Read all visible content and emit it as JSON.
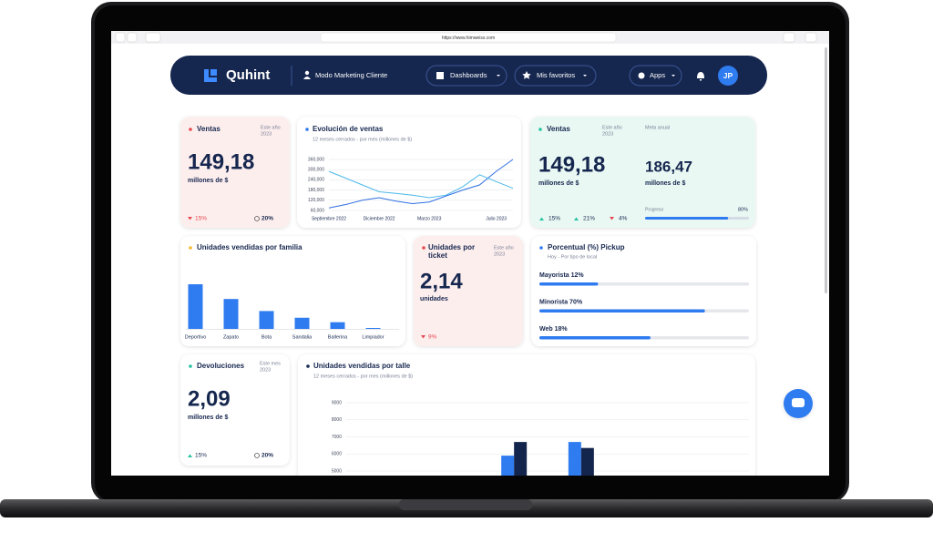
{
  "browser": {
    "url": "https://www.himweiss.com"
  },
  "nav": {
    "brand": "Quhint",
    "profile": "Modo Marketing Cliente",
    "menus": [
      "Dashboards",
      "Mis favoritos",
      "Apps"
    ],
    "avatar": "JP"
  },
  "ventas": {
    "title": "Ventas",
    "period": "Este año",
    "year": "2023",
    "value": "149,18",
    "unit": "millones de $",
    "change": "15%",
    "share": "20%"
  },
  "evolucion": {
    "type": "line",
    "title": "Evolución de ventas",
    "subtitle": "12 meses cerrados - por mes (millones de $)",
    "categories": [
      "Septiembre 2022",
      null,
      null,
      "Diciembre 2022",
      null,
      null,
      "Marzo 2023",
      null,
      null,
      null,
      "Julio 2023",
      null
    ],
    "series": [
      {
        "color": "#2f6fe0",
        "values": [
          75000,
          95000,
          120000,
          135000,
          115000,
          100000,
          110000,
          145000,
          180000,
          210000,
          290000,
          360000
        ]
      },
      {
        "color": "#4cb8e8",
        "values": [
          290000,
          250000,
          210000,
          170000,
          160000,
          150000,
          135000,
          150000,
          200000,
          270000,
          230000,
          190000
        ]
      }
    ],
    "ylim": [
      60000,
      360000
    ],
    "yticks": [
      {
        "value": 60000,
        "label": "60,000"
      },
      {
        "value": 120000,
        "label": "120,000"
      },
      {
        "value": 180000,
        "label": "180,000"
      },
      {
        "value": 240000,
        "label": "240,000"
      },
      {
        "value": 300000,
        "label": "300,000"
      },
      {
        "value": 360000,
        "label": "360,000"
      }
    ],
    "grid": true
  },
  "ventas_anual": {
    "title": "Ventas",
    "period": "Este año",
    "year": "2023",
    "value": "149,18",
    "unit": "millones de $",
    "goal_title": "Meta anual",
    "goal_value": "186,47",
    "goal_unit": "millones de $",
    "progress_title": "Progreso",
    "progress": {
      "value": 80,
      "label": "80%"
    },
    "stats": [
      "15%",
      "21%",
      "4%"
    ]
  },
  "familia": {
    "type": "bar",
    "title": "Unidades vendidas por familia",
    "categories": [
      "Deportivo",
      "Zapato",
      "Bota",
      "Sandalia",
      "Ballerina",
      "Limpiador"
    ],
    "values": [
      100,
      67,
      40,
      25,
      15,
      2
    ],
    "color": "#2f7bf0"
  },
  "ticket": {
    "title": "Unidades por ticket",
    "period": "Este año",
    "year": "2023",
    "value": "2,14",
    "unit": "unidades",
    "change": "9%"
  },
  "pickup": {
    "title": "Porcentual (%) Pickup",
    "subtitle": "Hoy - Por tipo de local",
    "color": "#2f7bf0",
    "items": [
      {
        "label": "Mayorista 12%",
        "bar": 28
      },
      {
        "label": "Minorista 70%",
        "bar": 79
      },
      {
        "label": "Web 18%",
        "bar": 53
      }
    ]
  },
  "devoluciones": {
    "title": "Devoluciones",
    "period": "Este mes",
    "year": "2023",
    "value": "2,09",
    "unit": "millones de $",
    "change": "15%",
    "share": "20%"
  },
  "talle": {
    "type": "bar",
    "title": "Unidades vendidas por talle",
    "subtitle": "12 meses cerrados - por mes (millones de $)",
    "categories": [
      null,
      null,
      null,
      null,
      null,
      null
    ],
    "series": [
      {
        "color": "#2f7bf0",
        "values": [
          null,
          null,
          5900,
          6700,
          null,
          null
        ]
      },
      {
        "color": "#14254d",
        "values": [
          null,
          null,
          6700,
          6350,
          null,
          null
        ]
      }
    ],
    "ylim": [
      5000,
      9000
    ],
    "yticks": [
      5000,
      6000,
      7000,
      8000,
      9000
    ],
    "grid": true
  }
}
